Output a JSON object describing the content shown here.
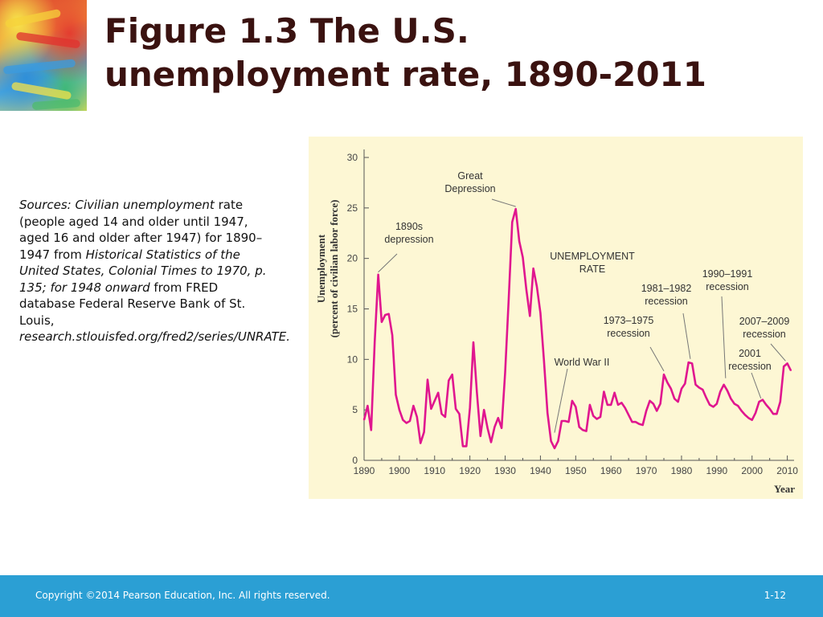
{
  "slide": {
    "title": "Figure 1.3  The U.S.\nunemployment rate, 1890-2011",
    "sources": [
      {
        "text": "Sources: Civilian unemployment",
        "italic": true
      },
      {
        "text": " rate (people aged 14 and older until 1947, aged 16 and older after 1947) for 1890–1947 from ",
        "italic": false
      },
      {
        "text": "Historical Statistics of the United States, Colonial Times to 1970, p. 135; for 1948 onward",
        "italic": true
      },
      {
        "text": " from FRED database Federal Reserve Bank of St. Louis, ",
        "italic": false
      },
      {
        "text": "research.stlouisfed.org/fred2/series/UNRATE.",
        "italic": true
      }
    ],
    "footer": {
      "copyright": "Copyright ©2014 Pearson Education, Inc. All rights reserved.",
      "page_number": "1-12"
    }
  },
  "chart_data": {
    "type": "line",
    "title": "",
    "xlabel": "Year",
    "ylabel": "Unemployment\n(percent of civilian labor force)",
    "xlim": [
      1890,
      2011
    ],
    "ylim": [
      0,
      30
    ],
    "x_ticks": [
      1890,
      1900,
      1910,
      1920,
      1930,
      1940,
      1950,
      1960,
      1970,
      1980,
      1990,
      2000,
      2010
    ],
    "y_ticks": [
      0,
      5,
      10,
      15,
      20,
      25,
      30
    ],
    "grid": false,
    "line_color": "#e0168f",
    "series": [
      {
        "name": "UNEMPLOYMENT RATE",
        "x": [
          1890,
          1891,
          1892,
          1893,
          1894,
          1895,
          1896,
          1897,
          1898,
          1899,
          1900,
          1901,
          1902,
          1903,
          1904,
          1905,
          1906,
          1907,
          1908,
          1909,
          1910,
          1911,
          1912,
          1913,
          1914,
          1915,
          1916,
          1917,
          1918,
          1919,
          1920,
          1921,
          1922,
          1923,
          1924,
          1925,
          1926,
          1927,
          1928,
          1929,
          1930,
          1931,
          1932,
          1933,
          1934,
          1935,
          1936,
          1937,
          1938,
          1939,
          1940,
          1941,
          1942,
          1943,
          1944,
          1945,
          1946,
          1947,
          1948,
          1949,
          1950,
          1951,
          1952,
          1953,
          1954,
          1955,
          1956,
          1957,
          1958,
          1959,
          1960,
          1961,
          1962,
          1963,
          1964,
          1965,
          1966,
          1967,
          1968,
          1969,
          1970,
          1971,
          1972,
          1973,
          1974,
          1975,
          1976,
          1977,
          1978,
          1979,
          1980,
          1981,
          1982,
          1983,
          1984,
          1985,
          1986,
          1987,
          1988,
          1989,
          1990,
          1991,
          1992,
          1993,
          1994,
          1995,
          1996,
          1997,
          1998,
          1999,
          2000,
          2001,
          2002,
          2003,
          2004,
          2005,
          2006,
          2007,
          2008,
          2009,
          2010,
          2011
        ],
        "values": [
          4.0,
          5.4,
          3.0,
          11.7,
          18.4,
          13.7,
          14.4,
          14.5,
          12.4,
          6.5,
          5.0,
          4.0,
          3.7,
          3.9,
          5.4,
          4.3,
          1.7,
          2.8,
          8.0,
          5.1,
          5.9,
          6.7,
          4.6,
          4.3,
          7.9,
          8.5,
          5.1,
          4.6,
          1.4,
          1.4,
          5.2,
          11.7,
          6.7,
          2.4,
          5.0,
          3.2,
          1.8,
          3.3,
          4.2,
          3.2,
          8.7,
          15.9,
          23.6,
          24.9,
          21.7,
          20.1,
          16.9,
          14.3,
          19.0,
          17.2,
          14.6,
          9.9,
          4.7,
          1.9,
          1.2,
          1.9,
          3.9,
          3.9,
          3.8,
          5.9,
          5.3,
          3.3,
          3.0,
          2.9,
          5.5,
          4.4,
          4.1,
          4.3,
          6.8,
          5.5,
          5.5,
          6.7,
          5.5,
          5.7,
          5.2,
          4.5,
          3.8,
          3.8,
          3.6,
          3.5,
          4.9,
          5.9,
          5.6,
          4.9,
          5.6,
          8.5,
          7.7,
          7.1,
          6.1,
          5.8,
          7.1,
          7.6,
          9.7,
          9.6,
          7.5,
          7.2,
          7.0,
          6.2,
          5.5,
          5.3,
          5.6,
          6.8,
          7.5,
          6.9,
          6.1,
          5.6,
          5.4,
          4.9,
          4.5,
          4.2,
          4.0,
          4.7,
          5.8,
          6.0,
          5.5,
          5.1,
          4.6,
          4.6,
          5.8,
          9.3,
          9.6,
          8.9
        ]
      }
    ],
    "annotations": [
      {
        "id": "depression-1890s",
        "lines": [
          "1890s",
          "depression"
        ],
        "x": 1894,
        "y": 18.4
      },
      {
        "id": "great-depression",
        "lines": [
          "Great",
          "Depression"
        ],
        "x": 1933,
        "y": 24.9
      },
      {
        "id": "unemployment-rate",
        "lines": [
          "UNEMPLOYMENT",
          "RATE"
        ],
        "x": null,
        "y": null
      },
      {
        "id": "world-war-ii",
        "lines": [
          "World War II"
        ],
        "x": 1944,
        "y": 2.5
      },
      {
        "id": "recession-1973-1975",
        "lines": [
          "1973–1975",
          "recession"
        ],
        "x": 1975,
        "y": 8.6
      },
      {
        "id": "recession-1981-1982",
        "lines": [
          "1981–1982",
          "recession"
        ],
        "x": 1982.5,
        "y": 9.8
      },
      {
        "id": "recession-1990-1991",
        "lines": [
          "1990–1991",
          "recession"
        ],
        "x": 1992.5,
        "y": 7.9
      },
      {
        "id": "recession-2001",
        "lines": [
          "2001",
          "recession"
        ],
        "x": 2002.5,
        "y": 5.9
      },
      {
        "id": "recession-2007-2009",
        "lines": [
          "2007–2009",
          "recession"
        ],
        "x": 2009.5,
        "y": 9.6
      }
    ]
  }
}
